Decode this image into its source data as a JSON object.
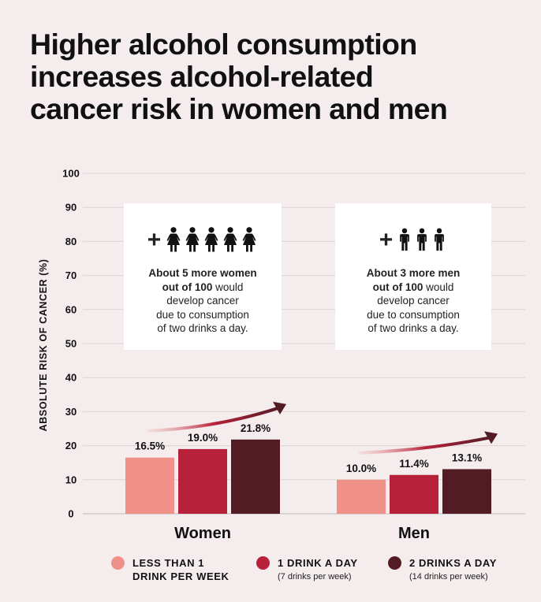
{
  "title_lines": [
    "Higher alcohol consumption",
    "increases alcohol-related",
    "cancer risk in women and men"
  ],
  "callouts": {
    "women": {
      "plus": "+",
      "icon": "woman-figure-icon",
      "icon_count": 5,
      "bold_line1": "About 5 more women",
      "bold_line2": "out of 100",
      "rest_line2": " would",
      "line3": "develop cancer",
      "line4": "due to consumption",
      "line5": "of two drinks a day."
    },
    "men": {
      "plus": "+",
      "icon": "man-figure-icon",
      "icon_count": 3,
      "bold_line1": "About 3 more men",
      "bold_line2": "out of 100",
      "rest_line2": " would",
      "line3": "develop cancer",
      "line4": "due to consumption",
      "line5": "of two drinks a day."
    }
  },
  "legend": [
    {
      "label": "LESS THAN 1",
      "label2": "DRINK PER WEEK",
      "sub": "",
      "color": "#ef9189"
    },
    {
      "label": "1 DRINK A DAY",
      "label2": "",
      "sub": "(7 drinks per week)",
      "color": "#b7223a"
    },
    {
      "label": "2 DRINKS A DAY",
      "label2": "",
      "sub": "(14 drinks per week)",
      "color": "#531c25"
    }
  ],
  "chart_data": {
    "type": "bar",
    "ylabel": "ABSOLUTE RISK OF CANCER (%)",
    "ylim": [
      0,
      100
    ],
    "yticks": [
      0,
      10,
      20,
      30,
      40,
      50,
      60,
      70,
      80,
      90,
      100
    ],
    "grid": true,
    "categories": [
      "Women",
      "Men"
    ],
    "series": [
      {
        "name": "LESS THAN 1 DRINK PER WEEK",
        "color": "#ef9189",
        "values": [
          16.5,
          10.0
        ],
        "labels": [
          "16.5%",
          "10.0%"
        ]
      },
      {
        "name": "1 DRINK A DAY",
        "color": "#b7223a",
        "values": [
          19.0,
          11.4
        ],
        "labels": [
          "19.0%",
          "11.4%"
        ]
      },
      {
        "name": "2 DRINKS A DAY",
        "color": "#531c25",
        "values": [
          21.8,
          13.1
        ],
        "labels": [
          "21.8%",
          "13.1%"
        ]
      }
    ],
    "legend_position": "bottom"
  }
}
